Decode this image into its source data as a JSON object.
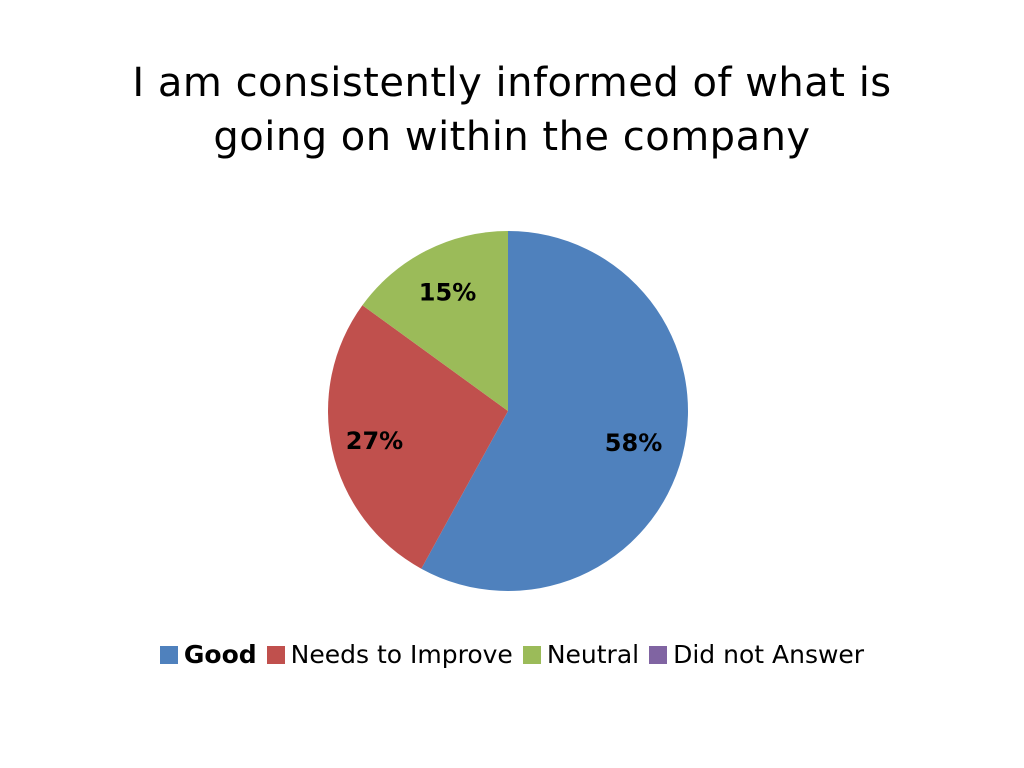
{
  "title": {
    "line1": "I am consistently informed of what is",
    "line2": "going on within the company"
  },
  "chart_data": {
    "type": "pie",
    "title": "I am consistently informed of what is going on within the company",
    "categories": [
      "Good",
      "Needs to Improve",
      "Neutral",
      "Did not Answer"
    ],
    "values": [
      58,
      27,
      15,
      0
    ],
    "value_labels": [
      "58%",
      "27%",
      "15%",
      ""
    ],
    "colors": [
      "#4F81BD",
      "#C0504D",
      "#9BBB59",
      "#8064A2"
    ],
    "start": "12 o'clock",
    "direction": "clockwise",
    "legend_position": "bottom"
  },
  "legend": [
    {
      "label": "Good",
      "color": "#4F81BD",
      "bold": true
    },
    {
      "label": "Needs to Improve",
      "color": "#C0504D",
      "bold": false
    },
    {
      "label": "Neutral",
      "color": "#9BBB59",
      "bold": false
    },
    {
      "label": "Did not Answer",
      "color": "#8064A2",
      "bold": false
    }
  ]
}
